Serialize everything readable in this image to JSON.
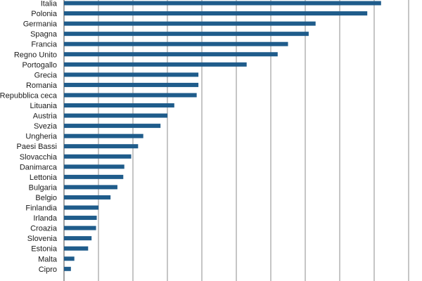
{
  "chart_data": {
    "type": "bar",
    "orientation": "horizontal",
    "title": "",
    "xlabel": "",
    "ylabel": "",
    "grid": "vertical",
    "bar_color": "#1f5c8b",
    "xlim": [
      0,
      10.5
    ],
    "categories": [
      "Italia",
      "Polonia",
      "Germania",
      "Spagna",
      "Francia",
      "Regno Unito",
      "Portogallo",
      "Grecia",
      "Romania",
      "Repubblica ceca",
      "Lituania",
      "Austria",
      "Svezia",
      "Ungheria",
      "Paesi Bassi",
      "Slovacchia",
      "Danimarca",
      "Lettonia",
      "Bulgaria",
      "Belgio",
      "Finlandia",
      "Irlanda",
      "Croazia",
      "Slovenia",
      "Estonia",
      "Malta",
      "Cipro"
    ],
    "values": [
      9.2,
      8.8,
      7.3,
      7.1,
      6.5,
      6.2,
      5.3,
      3.9,
      3.9,
      3.85,
      3.2,
      3.0,
      2.8,
      2.3,
      2.15,
      1.95,
      1.75,
      1.72,
      1.55,
      1.35,
      1.0,
      0.95,
      0.93,
      0.8,
      0.7,
      0.3,
      0.2
    ]
  }
}
